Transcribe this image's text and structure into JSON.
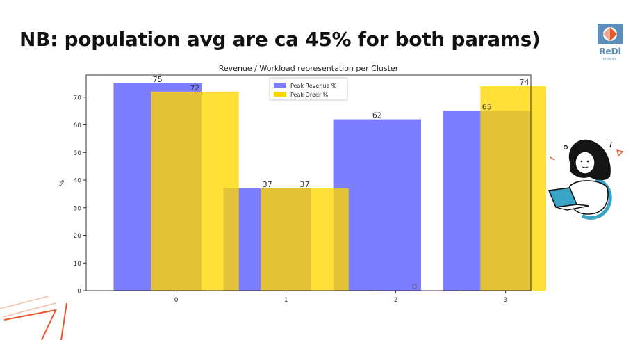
{
  "slide": {
    "title": "NB: population avg are ca 45% for both params)"
  },
  "logo": {
    "name": "ReDi",
    "subtitle": "SCHOOL",
    "colors": {
      "blue": "#5b8fb9",
      "orange": "#e8572a"
    }
  },
  "illustration": {
    "icon": "woman-with-laptop"
  },
  "chart_data": {
    "type": "bar",
    "title": "Revenue / Workload representation per Cluster",
    "xlabel": "",
    "ylabel": "%",
    "ylim": [
      0,
      78
    ],
    "yticks": [
      0,
      10,
      20,
      30,
      40,
      50,
      60,
      70
    ],
    "categories": [
      "0",
      "1",
      "2",
      "3"
    ],
    "grid": false,
    "legend_position": "top-center",
    "series": [
      {
        "name": "Peak Revenue %",
        "values": [
          75,
          37,
          62,
          65
        ],
        "color": "#7d7dff",
        "offset": "left"
      },
      {
        "name": "Peak Oredr %",
        "values": [
          72,
          37,
          0,
          74
        ],
        "color": "#ffd700",
        "offset": "right"
      }
    ]
  }
}
